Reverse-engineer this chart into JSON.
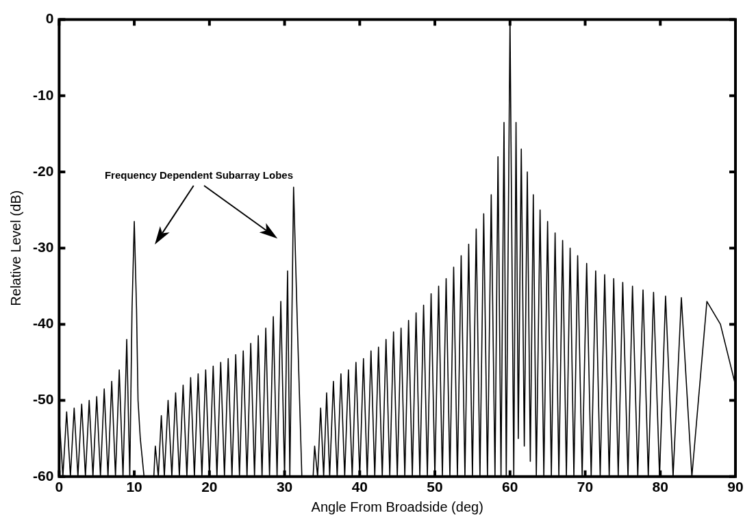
{
  "chart_data": {
    "type": "line",
    "xlabel": "Angle From Broadside (deg)",
    "ylabel": "Relative Level (dB)",
    "xlim": [
      0,
      90
    ],
    "xticks": [
      0,
      10,
      20,
      30,
      40,
      50,
      60,
      70,
      80,
      90
    ],
    "ylim": [
      -60,
      0
    ],
    "yticks": [
      -60,
      -50,
      -40,
      -30,
      -20,
      -10,
      0
    ],
    "grid": false,
    "legend": false,
    "marker": "none",
    "line_style": "solid",
    "annotations": [
      "Frequency Dependent Subarray Lobes"
    ],
    "series": [
      {
        "color": "#000000",
        "x": [
          0,
          0.5,
          1,
          1.5,
          2,
          2.5,
          3,
          3.5,
          4,
          4.5,
          5,
          5.5,
          6,
          6.5,
          7,
          7.5,
          8,
          8.5,
          9,
          9.4,
          9.7,
          10,
          10.3,
          10.5,
          10.8,
          11.3,
          12.6,
          12.8,
          13.2,
          13.6,
          14,
          14.5,
          15,
          15.5,
          16,
          16.5,
          17,
          17.5,
          18,
          18.5,
          19,
          19.5,
          20,
          20.5,
          21,
          21.5,
          22,
          22.5,
          23,
          23.5,
          24,
          24.5,
          25,
          25.5,
          26,
          26.5,
          27,
          27.5,
          28,
          28.5,
          29,
          29.5,
          30,
          30.4,
          30.7,
          31.2,
          31.7,
          32,
          32.3,
          33.8,
          34,
          34.4,
          34.8,
          35.2,
          35.6,
          36,
          36.5,
          37,
          37.5,
          38,
          38.5,
          39,
          39.5,
          40,
          40.5,
          41,
          41.5,
          42,
          42.5,
          43,
          43.5,
          44,
          44.5,
          45,
          45.5,
          46,
          46.5,
          47,
          47.5,
          48,
          48.5,
          49,
          49.5,
          50,
          50.5,
          51,
          51.5,
          52,
          52.5,
          53,
          53.5,
          54,
          54.5,
          55,
          55.5,
          56,
          56.5,
          57,
          57.5,
          58,
          58.4,
          58.8,
          59.2,
          59.5,
          60,
          60.5,
          60.8,
          61.1,
          61.5,
          61.9,
          62.3,
          62.7,
          63.1,
          63.5,
          64,
          64.5,
          65,
          65.5,
          66,
          66.5,
          67,
          67.5,
          68,
          68.5,
          69,
          69.6,
          70.2,
          70.8,
          71.4,
          72,
          72.6,
          73.2,
          73.8,
          74.4,
          75,
          75.7,
          76.3,
          77,
          77.7,
          78.4,
          79.1,
          79.9,
          80.7,
          81.7,
          82.8,
          84.2,
          86.2,
          88,
          89,
          90
        ],
        "values": [
          -52,
          -60,
          -51.5,
          -60,
          -51,
          -60,
          -50.5,
          -60,
          -50,
          -60,
          -49.5,
          -60,
          -48.5,
          -60,
          -47.5,
          -60,
          -46,
          -60,
          -42,
          -60,
          -38,
          -26.5,
          -38,
          -50,
          -55,
          -60,
          -60,
          -56,
          -60,
          -52,
          -60,
          -50,
          -60,
          -49,
          -60,
          -48,
          -60,
          -47,
          -60,
          -46.5,
          -60,
          -46,
          -60,
          -45.5,
          -60,
          -45,
          -60,
          -44.5,
          -60,
          -44,
          -60,
          -43.5,
          -60,
          -42.5,
          -60,
          -41.5,
          -60,
          -40.5,
          -60,
          -39,
          -60,
          -37,
          -60,
          -33,
          -60,
          -22,
          -40,
          -50,
          -60,
          -60,
          -56,
          -60,
          -51,
          -60,
          -49,
          -60,
          -47.5,
          -60,
          -46.5,
          -60,
          -46,
          -60,
          -45,
          -60,
          -44.5,
          -60,
          -43.5,
          -60,
          -43,
          -60,
          -42,
          -60,
          -41,
          -60,
          -40.5,
          -60,
          -39.5,
          -60,
          -38.5,
          -60,
          -37.5,
          -60,
          -36,
          -60,
          -35,
          -60,
          -34,
          -60,
          -32.5,
          -60,
          -31,
          -60,
          -29.5,
          -60,
          -27.5,
          -60,
          -25.5,
          -60,
          -23,
          -60,
          -18,
          -60,
          -13.5,
          -60,
          0,
          -60,
          -13.5,
          -55,
          -17,
          -56,
          -20,
          -58,
          -23,
          -60,
          -25,
          -60,
          -26.5,
          -60,
          -28,
          -60,
          -29,
          -60,
          -30,
          -60,
          -31,
          -60,
          -32,
          -60,
          -33,
          -60,
          -33.5,
          -60,
          -34,
          -60,
          -34.5,
          -60,
          -35,
          -60,
          -35.5,
          -60,
          -35.8,
          -60,
          -36.3,
          -60,
          -36.5,
          -60,
          -37,
          -40,
          -44,
          -48
        ]
      }
    ]
  }
}
